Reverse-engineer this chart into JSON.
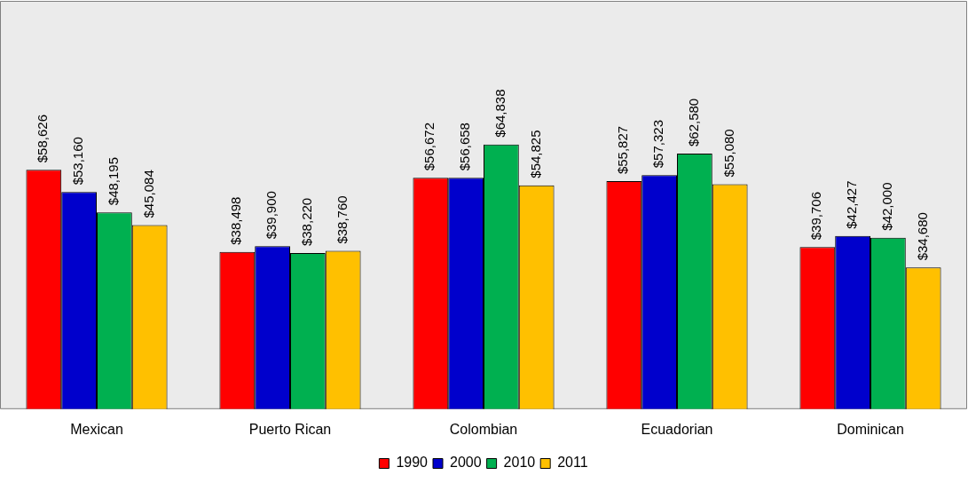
{
  "chart_data": {
    "type": "bar",
    "categories": [
      "Mexican",
      "Puerto Rican",
      "Colombian",
      "Ecuadorian",
      "Dominican"
    ],
    "series": [
      {
        "name": "1990",
        "color": "#ff0000",
        "values": [
          58626,
          38498,
          56672,
          55827,
          39706
        ],
        "value_labels": [
          "$58,626",
          "$38,498",
          "$56,672",
          "$55,827",
          "$39,706"
        ]
      },
      {
        "name": "2000",
        "color": "#0000cc",
        "values": [
          53160,
          39900,
          56658,
          57323,
          42427
        ],
        "value_labels": [
          "$53,160",
          "$39,900",
          "$56,658",
          "$57,323",
          "$42,427"
        ]
      },
      {
        "name": "2010",
        "color": "#00b050",
        "values": [
          48195,
          38220,
          64838,
          62580,
          42000
        ],
        "value_labels": [
          "$48,195",
          "$38,220",
          "$64,838",
          "$62,580",
          "$42,000"
        ]
      },
      {
        "name": "2011",
        "color": "#ffc000",
        "values": [
          45084,
          38760,
          54825,
          55080,
          34680
        ],
        "value_labels": [
          "$45,084",
          "$38,760",
          "$54,825",
          "$55,080",
          "$34,680"
        ]
      }
    ],
    "tick_labels": "x",
    "grid": false,
    "legend": "bottom"
  }
}
